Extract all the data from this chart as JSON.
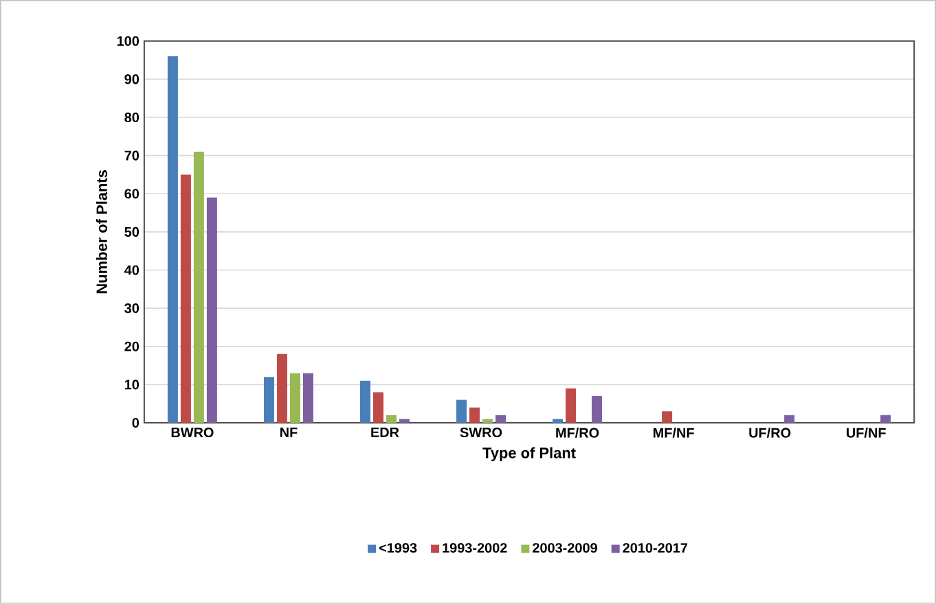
{
  "chart_data": {
    "type": "bar",
    "xlabel": "Type of Plant",
    "ylabel": "Number of Plants",
    "categories": [
      "BWRO",
      "NF",
      "EDR",
      "SWRO",
      "MF/RO",
      "MF/NF",
      "UF/RO",
      "UF/NF"
    ],
    "series": [
      {
        "name": "<1993",
        "color": "#4a7ebb",
        "values": [
          96,
          12,
          11,
          6,
          1,
          0,
          0,
          0
        ]
      },
      {
        "name": "1993-2002",
        "color": "#be4b48",
        "values": [
          65,
          18,
          8,
          4,
          9,
          3,
          0,
          0
        ]
      },
      {
        "name": "2003-2009",
        "color": "#98b954",
        "values": [
          71,
          13,
          2,
          1,
          0,
          0,
          0,
          0
        ]
      },
      {
        "name": "2010-2017",
        "color": "#7d60a0",
        "values": [
          59,
          13,
          1,
          2,
          7,
          0,
          2,
          2
        ]
      }
    ],
    "ylim": [
      0,
      100
    ],
    "yticks": [
      0,
      10,
      20,
      30,
      40,
      50,
      60,
      70,
      80,
      90,
      100
    ],
    "grid": "y",
    "legend": "bottom"
  }
}
